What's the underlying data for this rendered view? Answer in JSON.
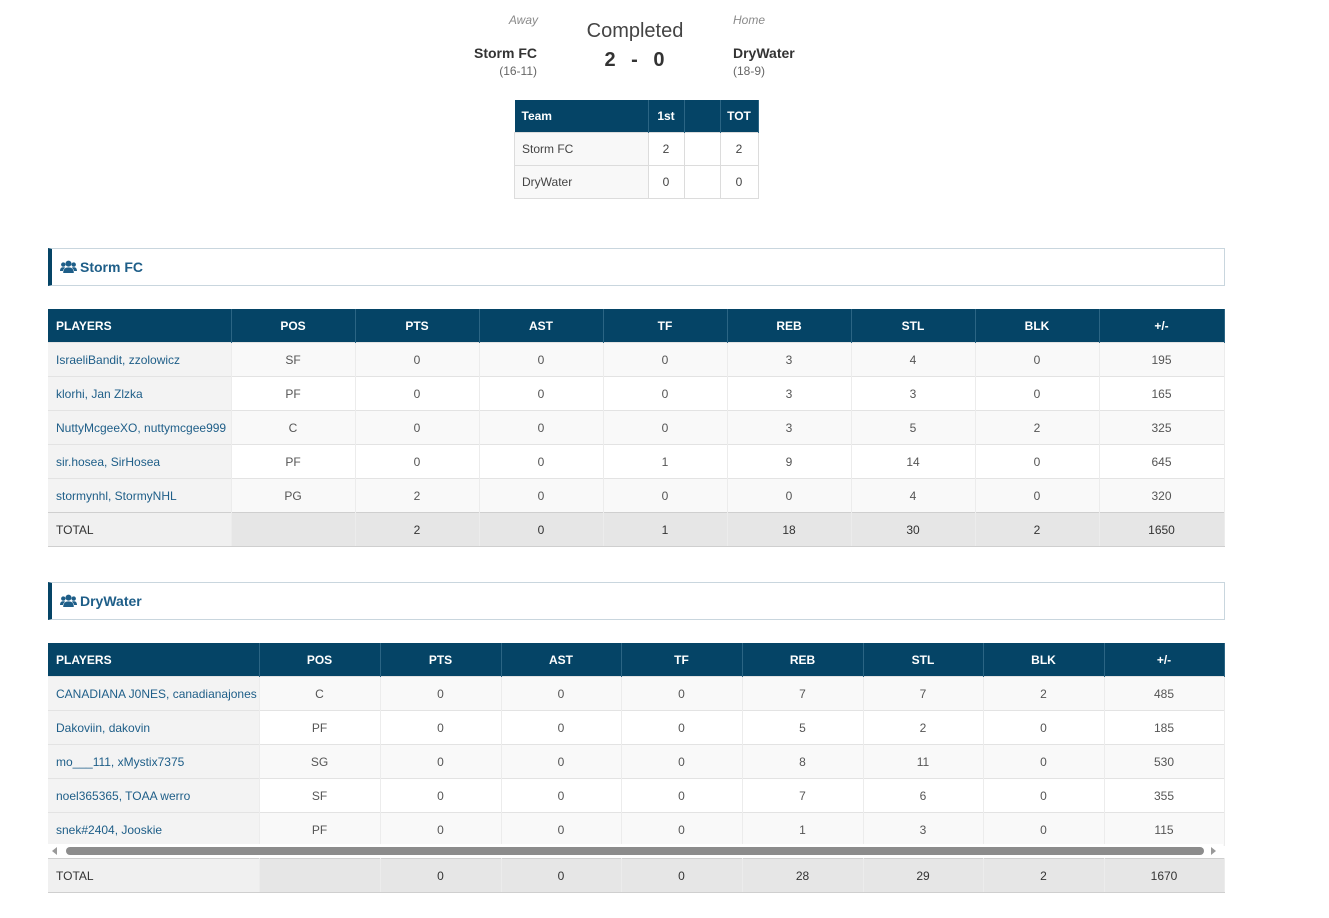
{
  "game": {
    "away_label": "Away",
    "home_label": "Home",
    "status": "Completed",
    "away_team": "Storm FC",
    "away_record": "(16-11)",
    "home_team": "DryWater",
    "home_record": "(18-9)",
    "away_score": "2",
    "score_sep": "-",
    "home_score": "0"
  },
  "linescore": {
    "headers": [
      "Team",
      "1st",
      "",
      "TOT"
    ],
    "rows": [
      {
        "team": "Storm FC",
        "q1": "2",
        "blank": "",
        "tot": "2"
      },
      {
        "team": "DryWater",
        "q1": "0",
        "blank": "",
        "tot": "0"
      }
    ]
  },
  "teams": [
    {
      "name": "Storm FC",
      "icon": "users-icon",
      "headers": [
        "PLAYERS",
        "POS",
        "PTS",
        "AST",
        "TF",
        "REB",
        "STL",
        "BLK",
        "+/-"
      ],
      "players": [
        [
          "IsraeliBandit, zzolowicz",
          "SF",
          "0",
          "0",
          "0",
          "3",
          "4",
          "0",
          "195"
        ],
        [
          "klorhi, Jan Zlzka",
          "PF",
          "0",
          "0",
          "0",
          "3",
          "3",
          "0",
          "165"
        ],
        [
          "NuttyMcgeeXO, nuttymcgee999",
          "C",
          "0",
          "0",
          "0",
          "3",
          "5",
          "2",
          "325"
        ],
        [
          "sir.hosea, SirHosea",
          "PF",
          "0",
          "0",
          "1",
          "9",
          "14",
          "0",
          "645"
        ],
        [
          "stormynhl, StormyNHL",
          "PG",
          "2",
          "0",
          "0",
          "0",
          "4",
          "0",
          "320"
        ]
      ],
      "total": [
        "TOTAL",
        "",
        "2",
        "0",
        "1",
        "18",
        "30",
        "2",
        "1650"
      ]
    },
    {
      "name": "DryWater",
      "icon": "users-icon",
      "headers": [
        "PLAYERS",
        "POS",
        "PTS",
        "AST",
        "TF",
        "REB",
        "STL",
        "BLK",
        "+/-"
      ],
      "players": [
        [
          "CANADIANA J0NES, canadianajones",
          "C",
          "0",
          "0",
          "0",
          "7",
          "7",
          "2",
          "485"
        ],
        [
          "Dakoviin, dakovin",
          "PF",
          "0",
          "0",
          "0",
          "5",
          "2",
          "0",
          "185"
        ],
        [
          "mo___111, xMystix7375",
          "SG",
          "0",
          "0",
          "0",
          "8",
          "11",
          "0",
          "530"
        ],
        [
          "noel365365, TOAA werro",
          "SF",
          "0",
          "0",
          "0",
          "7",
          "6",
          "0",
          "355"
        ],
        [
          "snek#2404, Jooskie",
          "PF",
          "0",
          "0",
          "0",
          "1",
          "3",
          "0",
          "115"
        ]
      ],
      "total": [
        "TOTAL",
        "",
        "0",
        "0",
        "0",
        "28",
        "29",
        "2",
        "1670"
      ]
    }
  ],
  "colors": {
    "header_bg": "#054466",
    "link": "#1e5e88"
  }
}
